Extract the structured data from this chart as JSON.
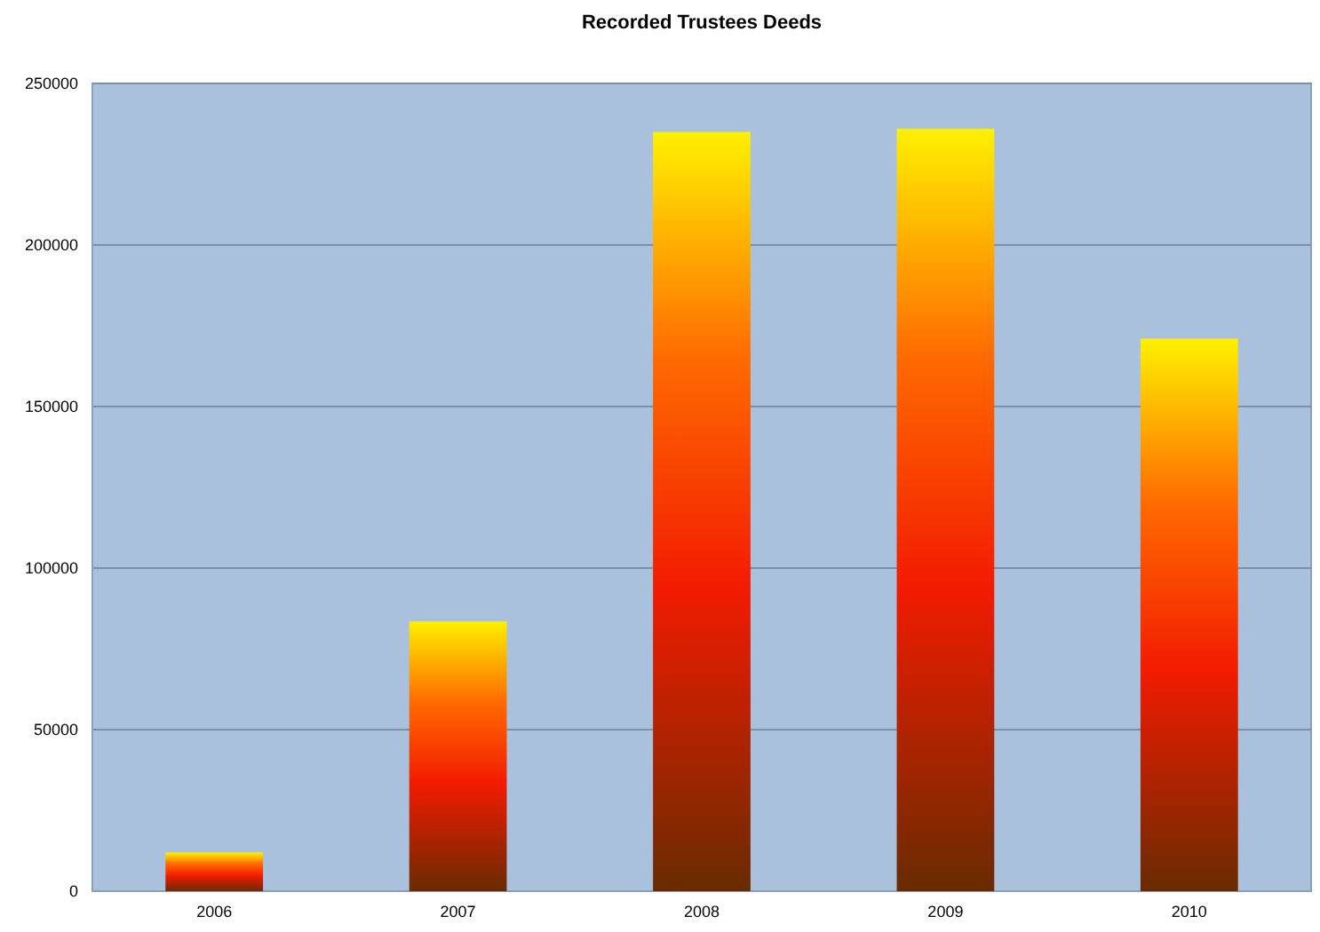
{
  "chart_data": {
    "type": "bar",
    "title": "Recorded Trustees Deeds",
    "categories": [
      "2006",
      "2007",
      "2008",
      "2009",
      "2010"
    ],
    "values": [
      12000,
      83500,
      235000,
      236000,
      171000
    ],
    "color": "#ff6a00",
    "ylim": [
      0,
      250000
    ],
    "yticks": [
      0,
      50000,
      100000,
      150000,
      200000,
      250000
    ],
    "grid": "y"
  }
}
